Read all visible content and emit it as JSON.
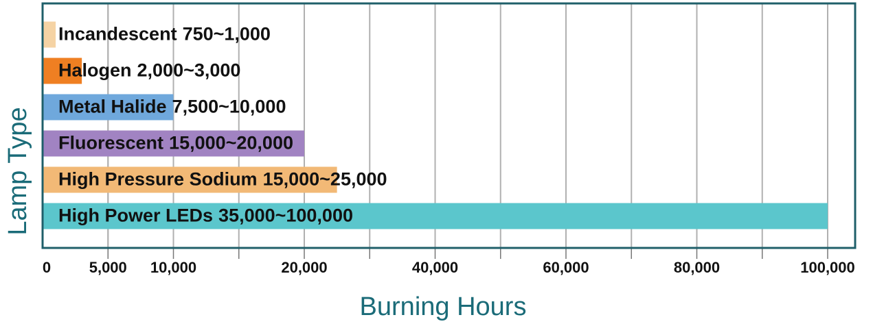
{
  "chart_data": {
    "type": "bar",
    "orientation": "horizontal",
    "x_axis_label": "Burning Hours",
    "y_axis_label": "Lamp Type",
    "categories": [
      "Incandescent",
      "Halogen",
      "Metal Halide",
      "Fluorescent",
      "High Pressure Sodium",
      "High Power LEDs"
    ],
    "values": [
      1000,
      3000,
      10000,
      20000,
      25000,
      100000
    ],
    "value_labels": [
      "750~1,000",
      "2,000~3,000",
      "7,500~10,000",
      "15,000~20,000",
      "15,000~25,000",
      "35,000~100,000"
    ],
    "colors": [
      "#f5d3a4",
      "#ef7f22",
      "#6fa8dc",
      "#a183c2",
      "#f2b976",
      "#5bc6cc"
    ],
    "xlim": [
      0,
      100000
    ],
    "xticks": [
      0,
      {
        "value": 5000,
        "label": "5,000"
      },
      {
        "value": 10000,
        "label": "10,000"
      },
      {
        "value": 20000,
        "label": "20,000"
      },
      {
        "value": 40000,
        "label": "40,000"
      },
      {
        "value": 60000,
        "label": "60,000"
      },
      {
        "value": 80000,
        "label": "80,000"
      },
      {
        "value": 100000,
        "label": "100,000"
      }
    ],
    "grid": true
  }
}
